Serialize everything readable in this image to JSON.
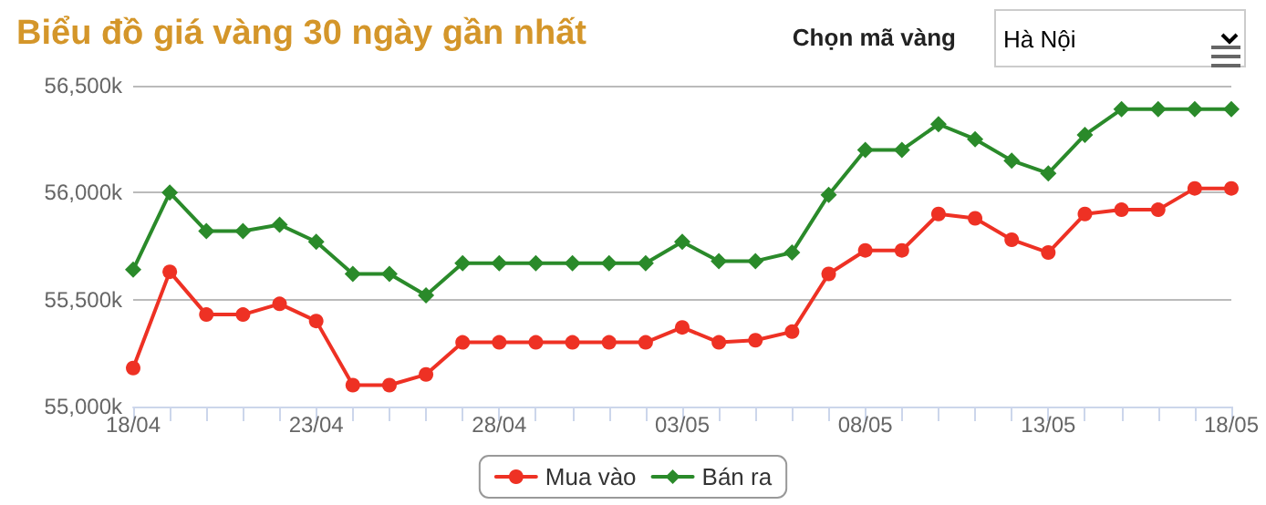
{
  "chart_data": {
    "type": "line",
    "title": "Biểu đồ giá vàng 30 ngày gần nhất",
    "categories": [
      "18/04",
      null,
      null,
      null,
      null,
      "23/04",
      null,
      null,
      null,
      null,
      "28/04",
      null,
      null,
      null,
      null,
      "03/05",
      null,
      null,
      null,
      null,
      "08/05",
      null,
      null,
      null,
      null,
      "13/05",
      null,
      null,
      null,
      null,
      "18/05"
    ],
    "series": [
      {
        "name": "Mua vào",
        "color": "#ee3124",
        "marker": "circle",
        "values": [
          55180,
          55630,
          55430,
          55430,
          55480,
          55400,
          55100,
          55100,
          55150,
          55300,
          55300,
          55300,
          55300,
          55300,
          55300,
          55370,
          55300,
          55310,
          55350,
          55620,
          55730,
          55730,
          55900,
          55880,
          55780,
          55720,
          55900,
          55920,
          55920,
          56020,
          56020
        ]
      },
      {
        "name": "Bán ra",
        "color": "#2a8a2a",
        "marker": "diamond",
        "values": [
          55640,
          56000,
          55820,
          55820,
          55850,
          55770,
          55620,
          55620,
          55520,
          55670,
          55670,
          55670,
          55670,
          55670,
          55670,
          55770,
          55680,
          55680,
          55720,
          55990,
          56200,
          56200,
          56320,
          56250,
          56150,
          56090,
          56270,
          56390,
          56390,
          56390,
          56390
        ]
      }
    ],
    "ylim": [
      55000,
      56500
    ],
    "yticks": [
      {
        "value": 55000,
        "label": "55,000k"
      },
      {
        "value": 55500,
        "label": "55,500k"
      },
      {
        "value": 56000,
        "label": "56,000k"
      },
      {
        "value": 56500,
        "label": "56,500k"
      }
    ],
    "grid": "y",
    "legend": "bottom",
    "line_style": "solid",
    "annotations": [
      "Chọn mã vàng",
      "Hà Nội"
    ]
  }
}
